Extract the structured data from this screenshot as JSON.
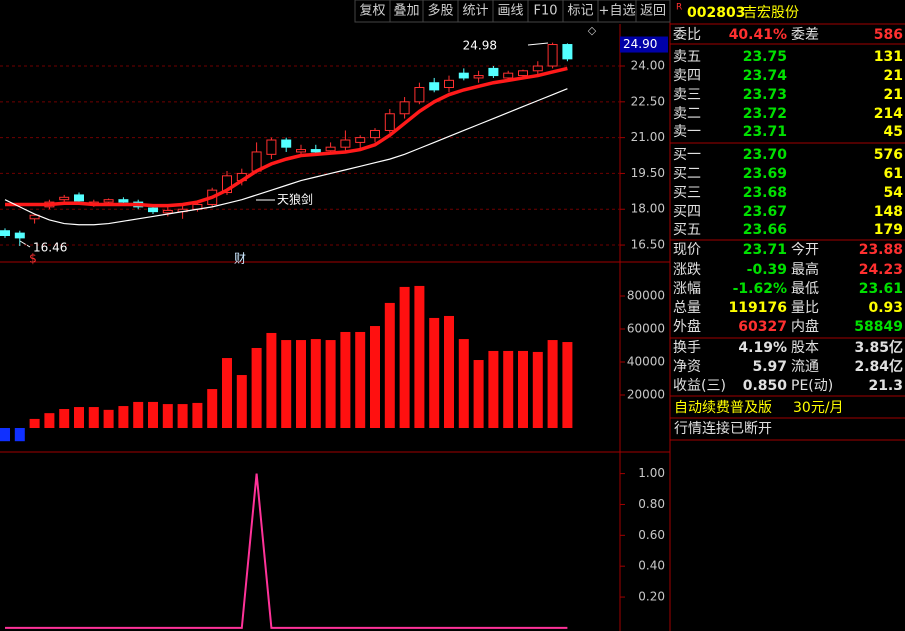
{
  "toolbar": [
    "复权",
    "叠加",
    "多股",
    "统计",
    "画线",
    "F10",
    "标记",
    "+自选",
    "返回"
  ],
  "quote": {
    "flag": "R",
    "code": "002803",
    "name": "吉宏股份",
    "rows": [
      [
        "委比",
        "40.41%",
        "委差",
        "586"
      ],
      [
        "卖五",
        "23.75",
        "131"
      ],
      [
        "卖四",
        "23.74",
        "21"
      ],
      [
        "卖三",
        "23.73",
        "21"
      ],
      [
        "卖二",
        "23.72",
        "214"
      ],
      [
        "卖一",
        "23.71",
        "45"
      ],
      [
        "买一",
        "23.70",
        "576"
      ],
      [
        "买二",
        "23.69",
        "61"
      ],
      [
        "买三",
        "23.68",
        "54"
      ],
      [
        "买四",
        "23.67",
        "148"
      ],
      [
        "买五",
        "23.66",
        "179"
      ],
      [
        "现价",
        "23.71",
        "今开",
        "23.88"
      ],
      [
        "涨跌",
        "-0.39",
        "最高",
        "24.23"
      ],
      [
        "涨幅",
        "-1.62%",
        "最低",
        "23.61"
      ],
      [
        "总量",
        "119176",
        "量比",
        "0.93"
      ],
      [
        "外盘",
        "60327",
        "内盘",
        "58849"
      ],
      [
        "换手",
        "4.19%",
        "股本",
        "3.85亿"
      ],
      [
        "净资",
        "5.97",
        "流通",
        "2.84亿"
      ],
      [
        "收益(三)",
        "0.850",
        "PE(动)",
        "21.3"
      ]
    ],
    "ad": [
      "自动续费普及版",
      "30元/月"
    ],
    "status": "行情连接已断开"
  },
  "chart_data": [
    {
      "type": "candlestick",
      "open": [
        17.1,
        17.0,
        17.6,
        18.1,
        18.4,
        18.6,
        18.2,
        18.3,
        18.4,
        18.3,
        18.05,
        17.85,
        17.9,
        18.0,
        18.2,
        18.7,
        19.2,
        19.6,
        20.3,
        20.9,
        20.4,
        20.5,
        20.45,
        20.6,
        20.8,
        21.0,
        21.3,
        22.0,
        22.5,
        23.3,
        23.1,
        23.7,
        23.5,
        23.9,
        23.5,
        23.6,
        23.8,
        24.0,
        24.9
      ],
      "high": [
        17.2,
        17.1,
        17.8,
        18.4,
        18.6,
        18.7,
        18.4,
        18.45,
        18.5,
        18.4,
        18.2,
        18.1,
        18.2,
        18.3,
        18.9,
        19.6,
        19.7,
        20.8,
        21.0,
        21.0,
        20.7,
        20.7,
        20.8,
        21.3,
        21.1,
        21.4,
        22.2,
        22.7,
        23.3,
        23.5,
        23.6,
        23.9,
        23.8,
        24.0,
        23.8,
        23.85,
        24.2,
        24.98,
        24.95
      ],
      "low": [
        16.8,
        16.46,
        17.4,
        18.0,
        18.2,
        18.3,
        18.1,
        18.2,
        18.2,
        18.0,
        17.8,
        17.7,
        17.6,
        17.9,
        18.1,
        18.6,
        19.0,
        19.5,
        20.1,
        20.4,
        20.2,
        20.3,
        20.3,
        20.4,
        20.5,
        20.8,
        21.2,
        21.8,
        22.4,
        22.9,
        22.9,
        23.4,
        23.3,
        23.5,
        23.4,
        23.5,
        23.6,
        23.9,
        24.2
      ],
      "close": [
        16.9,
        16.8,
        17.75,
        18.3,
        18.5,
        18.35,
        18.3,
        18.4,
        18.3,
        18.1,
        17.9,
        17.95,
        18.0,
        18.2,
        18.8,
        19.4,
        19.5,
        20.4,
        20.9,
        20.6,
        20.5,
        20.4,
        20.6,
        20.9,
        21.0,
        21.3,
        22.0,
        22.5,
        23.1,
        23.0,
        23.4,
        23.5,
        23.6,
        23.6,
        23.7,
        23.8,
        24.0,
        24.9,
        24.3
      ],
      "up_color": "#ff3030",
      "down_color": "#54ffff",
      "series": [
        {
          "color": "#ff1a1a",
          "values": [
            18.2,
            18.2,
            18.2,
            18.2,
            18.25,
            18.25,
            18.2,
            18.2,
            18.2,
            18.2,
            18.15,
            18.15,
            18.2,
            18.3,
            18.5,
            18.8,
            19.2,
            19.6,
            19.9,
            20.1,
            20.25,
            20.3,
            20.35,
            20.4,
            20.5,
            20.7,
            21.1,
            21.6,
            22.1,
            22.5,
            22.8,
            23.0,
            23.15,
            23.3,
            23.4,
            23.5,
            23.6,
            23.75,
            23.9
          ]
        },
        {
          "color": "#ffffff",
          "values": [
            18.4,
            18.1,
            17.8,
            17.55,
            17.4,
            17.35,
            17.35,
            17.4,
            17.5,
            17.6,
            17.7,
            17.8,
            17.9,
            18.0,
            18.1,
            18.25,
            18.4,
            18.6,
            18.8,
            19.0,
            19.2,
            19.35,
            19.5,
            19.65,
            19.8,
            19.95,
            20.1,
            20.3,
            20.55,
            20.8,
            21.05,
            21.3,
            21.55,
            21.8,
            22.05,
            22.3,
            22.55,
            22.8,
            23.05
          ]
        }
      ],
      "annotations": [
        "24.98",
        "16.46",
        "天狼剑",
        "$",
        "财"
      ],
      "current_tag": {
        "value": 24.9,
        "label": "24.90"
      },
      "ylim": [
        15.79,
        25.76
      ],
      "yticks": [
        {
          "value": 24,
          "label": "24.00"
        },
        {
          "value": 22.5,
          "label": "22.50"
        },
        {
          "value": 21,
          "label": "21.00"
        },
        {
          "value": 19.5,
          "label": "19.50"
        },
        {
          "value": 18,
          "label": "18.00"
        },
        {
          "value": 16.5,
          "label": "16.50"
        }
      ],
      "grid": true
    },
    {
      "type": "bar",
      "values": [
        -8000,
        -8000,
        5500,
        9000,
        11500,
        12700,
        12700,
        11000,
        13300,
        15800,
        15800,
        14500,
        14500,
        15200,
        23600,
        42400,
        32100,
        48500,
        57600,
        53300,
        53300,
        53900,
        53300,
        58200,
        58200,
        61800,
        75800,
        85500,
        86100,
        66700,
        67900,
        53900,
        41200,
        46700,
        46700,
        46700,
        46100,
        53300,
        52100
      ],
      "color": "#ff1010",
      "negative_color": "#1030ff",
      "ylim": [
        -14545,
        100606
      ],
      "yticks": [
        80000,
        60000,
        40000,
        20000
      ],
      "grid": false
    },
    {
      "type": "line",
      "values": [
        0,
        0,
        0,
        0,
        0,
        0,
        0,
        0,
        0,
        0,
        0,
        0,
        0,
        0,
        0,
        0,
        0,
        1,
        0,
        0,
        0,
        0,
        0,
        0,
        0,
        0,
        0,
        0,
        0,
        0,
        0,
        0,
        0,
        0,
        0,
        0,
        0,
        0,
        0
      ],
      "color": "#ff3399",
      "ylim": [
        -0.02,
        1.14
      ],
      "yticks": [
        {
          "value": 1,
          "label": "1.00"
        },
        {
          "value": 0.8,
          "label": "0.80"
        },
        {
          "value": 0.6,
          "label": "0.60"
        },
        {
          "value": 0.4,
          "label": "0.40"
        },
        {
          "value": 0.2,
          "label": "0.20"
        }
      ],
      "grid": false
    }
  ]
}
